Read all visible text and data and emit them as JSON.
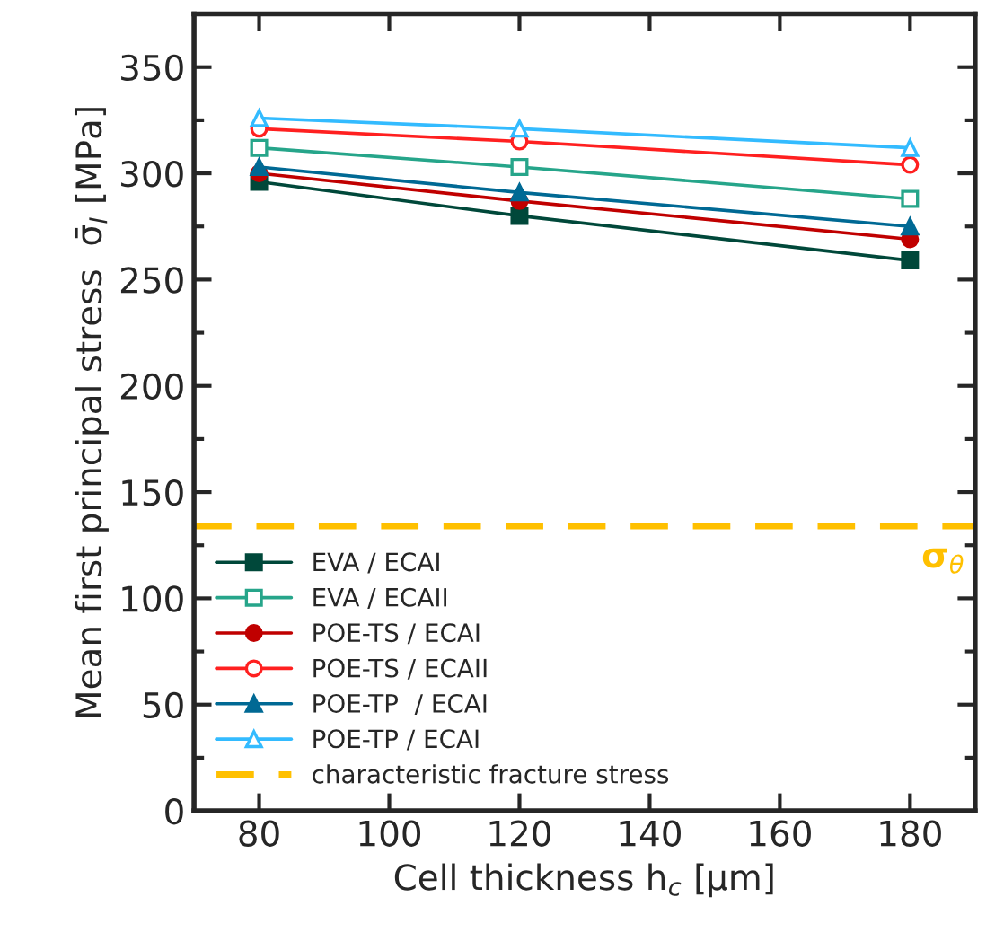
{
  "chart_data": {
    "type": "line",
    "xlabel": "Cell thickness h$_{c}$ [µm]",
    "ylabel": "Mean first principal stress  σ̄$_{I}$ [MPa]",
    "x": [
      80,
      120,
      180
    ],
    "series": [
      {
        "name": "EVA / ECAI",
        "color": "#00483a",
        "marker": "square",
        "values": [
          296,
          280,
          259
        ]
      },
      {
        "name": "EVA / ECAII",
        "color": "#26a58a",
        "marker": "square",
        "values": [
          312,
          303,
          288
        ]
      },
      {
        "name": "POE-TS / ECAI",
        "color": "#c00000",
        "marker": "circle",
        "values": [
          300,
          287,
          269
        ]
      },
      {
        "name": "POE-TS / ECAII",
        "color": "#ff2020",
        "marker": "circle",
        "values": [
          321,
          315,
          304
        ]
      },
      {
        "name": "POE-TP  / ECAI",
        "color": "#006994",
        "marker": "triangle",
        "values": [
          303,
          291,
          275
        ]
      },
      {
        "name": "POE-TP / ECAI",
        "color": "#33bbff",
        "marker": "triangle",
        "values": [
          326,
          321,
          312
        ]
      }
    ],
    "ref_lines": [
      {
        "axis": "y",
        "value": 134,
        "label": "characteristic fracture stress",
        "color": "#ffc000",
        "line_style": "dashed"
      }
    ],
    "annotations": [
      "σ$_{θ}$"
    ],
    "xlim": [
      70,
      190
    ],
    "xticks": [
      80,
      100,
      120,
      140,
      160,
      180
    ],
    "ylim": [
      0,
      375
    ],
    "yticks": [
      0,
      50,
      100,
      150,
      200,
      250,
      300,
      350
    ],
    "grid": false,
    "legend": "bottom left",
    "line_style": "solid"
  }
}
